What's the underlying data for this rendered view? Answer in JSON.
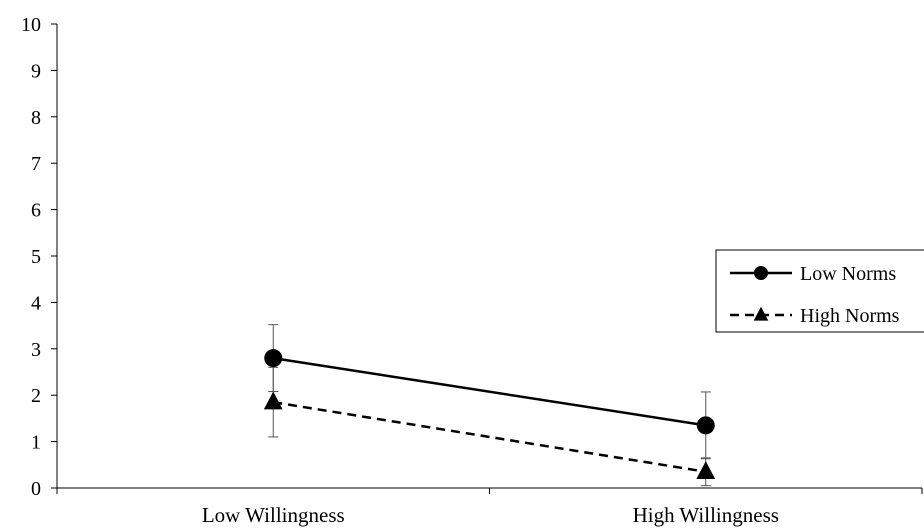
{
  "chart_data": {
    "type": "line",
    "categories": [
      "Low Willingness",
      "High Willingness"
    ],
    "series": [
      {
        "name": "Low Norms",
        "values": [
          2.8,
          1.35
        ],
        "error": [
          0.72,
          0.72
        ],
        "marker": "circle",
        "line_style": "solid",
        "color": "#000000"
      },
      {
        "name": "High Norms",
        "values": [
          1.85,
          0.35
        ],
        "error": [
          0.75,
          0.3
        ],
        "marker": "triangle",
        "line_style": "dashed",
        "color": "#000000"
      }
    ],
    "ylim": [
      0,
      10
    ],
    "yticks": [
      "0",
      "1",
      "2",
      "3",
      "4",
      "5",
      "6",
      "7",
      "8",
      "9",
      "10"
    ],
    "grid": false,
    "legend": "right"
  }
}
